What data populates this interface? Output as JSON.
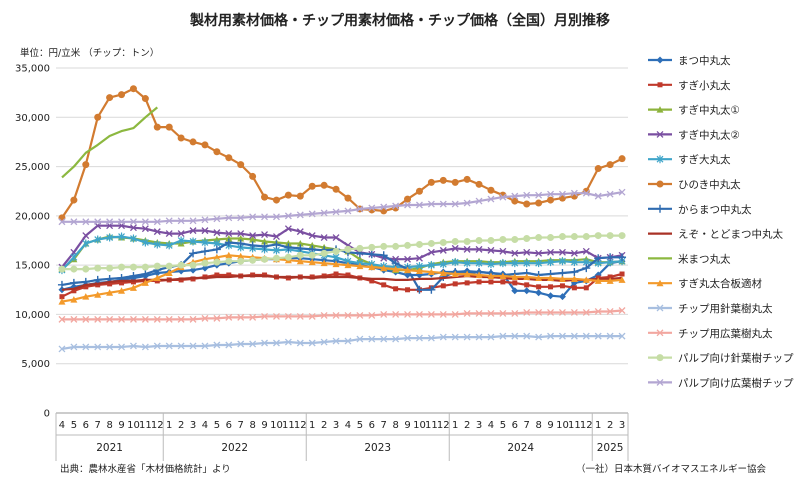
{
  "page": {
    "title": "製材用素材価格・チップ用素材価格・チップ価格（全国）月別推移",
    "unit_label": "単位：円/立米 （チップ：トン）",
    "source": "出典：農林水産省「木材価格統計」より",
    "credit": "（一社）日本木質バイオマスエネルギー協会"
  },
  "chart_data": {
    "type": "line",
    "title": "製材用素材価格・チップ用素材価格・チップ価格（全国）月別推移",
    "ylabel": "単位：円/立米 （チップ：トン）",
    "ylim": [
      0,
      35000
    ],
    "yticks": [
      0,
      5000,
      10000,
      15000,
      20000,
      25000,
      30000,
      35000
    ],
    "ytick_labels": [
      "0",
      "5,000",
      "10,000",
      "15,000",
      "20,000",
      "25,000",
      "30,000",
      "35,000"
    ],
    "grid": "horizontal",
    "legend": "right",
    "x_months": [
      "4",
      "5",
      "6",
      "7",
      "8",
      "9",
      "10",
      "11",
      "12",
      "1",
      "2",
      "3",
      "4",
      "5",
      "6",
      "7",
      "8",
      "9",
      "10",
      "11",
      "12",
      "1",
      "2",
      "3",
      "4",
      "5",
      "6",
      "7",
      "8",
      "9",
      "10",
      "11",
      "12",
      "1",
      "2",
      "3",
      "4",
      "5",
      "6",
      "7",
      "8",
      "9",
      "10",
      "11",
      "12",
      "1",
      "2",
      "3"
    ],
    "years": [
      {
        "label": "2021",
        "start": 0,
        "end": 8
      },
      {
        "label": "2022",
        "start": 9,
        "end": 20
      },
      {
        "label": "2023",
        "start": 21,
        "end": 32
      },
      {
        "label": "2024",
        "start": 33,
        "end": 44
      },
      {
        "label": "2025",
        "start": 45,
        "end": 47
      }
    ],
    "series": [
      {
        "name": "まつ中丸太",
        "color": "#2E6FB8",
        "marker": "diamond",
        "values": [
          12500,
          12800,
          13000,
          13200,
          13300,
          13500,
          13700,
          13900,
          14200,
          14300,
          14400,
          14500,
          14700,
          15000,
          15200,
          15400,
          15500,
          15600,
          15600,
          15700,
          15700,
          15600,
          15500,
          15400,
          15200,
          15000,
          14800,
          14500,
          14300,
          14000,
          14000,
          14100,
          14300,
          14300,
          14400,
          14300,
          14200,
          14100,
          12400,
          12400,
          12200,
          11900,
          11800,
          13200,
          13400,
          14000,
          15200,
          15400
        ]
      },
      {
        "name": "すぎ小丸太",
        "color": "#C0392B",
        "marker": "square",
        "values": [
          11800,
          12400,
          12800,
          13000,
          13100,
          13200,
          13300,
          13400,
          13400,
          13500,
          13500,
          13600,
          13800,
          14000,
          14000,
          13900,
          14000,
          14000,
          13800,
          13700,
          13800,
          13800,
          13900,
          14100,
          14000,
          13700,
          13400,
          13000,
          12600,
          12500,
          12500,
          12700,
          12900,
          13100,
          13200,
          13300,
          13300,
          13300,
          13200,
          13000,
          12800,
          12800,
          12900,
          12700,
          12700,
          13700,
          13800,
          14100
        ]
      },
      {
        "name": "すぎ中丸太①",
        "color": "#8DB33D",
        "marker": "triangle",
        "values": [
          14600,
          15600,
          17200,
          17600,
          17900,
          17800,
          17700,
          17500,
          17300,
          17200,
          17200,
          17400,
          17500,
          17600,
          17700,
          17700,
          17600,
          17400,
          17300,
          17200,
          17200,
          17000,
          16800,
          16600,
          16400,
          15600,
          15100,
          14700,
          14500,
          14500,
          14700,
          15100,
          15300,
          15400,
          15400,
          15400,
          15300,
          15300,
          15400,
          15400,
          15400,
          15500,
          15500,
          15500,
          15600,
          15300,
          15300,
          15400
        ]
      },
      {
        "name": "すぎ中丸太②",
        "color": "#7A4FA1",
        "marker": "x",
        "values": [
          14800,
          16300,
          18000,
          19000,
          19000,
          19000,
          18800,
          18700,
          18400,
          18200,
          18200,
          18500,
          18500,
          18300,
          18200,
          18200,
          18000,
          18100,
          17900,
          18700,
          18400,
          18000,
          17800,
          17800,
          17000,
          16300,
          16100,
          15700,
          15600,
          15600,
          15700,
          16300,
          16500,
          16700,
          16600,
          16600,
          16500,
          16400,
          16200,
          16300,
          16200,
          16300,
          16300,
          16200,
          16400,
          15700,
          15800,
          16000
        ]
      },
      {
        "name": "すぎ大丸太",
        "color": "#3FA5C9",
        "marker": "star",
        "values": [
          14500,
          15800,
          17200,
          17600,
          17800,
          17900,
          17700,
          17300,
          17100,
          17000,
          17500,
          17400,
          17300,
          17200,
          17000,
          16800,
          16700,
          16600,
          16500,
          16600,
          16400,
          16200,
          16000,
          15800,
          15400,
          15200,
          15100,
          14900,
          14800,
          14800,
          14900,
          15000,
          15100,
          15300,
          15200,
          15200,
          15100,
          15200,
          15200,
          15200,
          15200,
          15300,
          15400,
          15300,
          15300,
          15200,
          15300,
          15400
        ]
      },
      {
        "name": "ひのき中丸太",
        "color": "#D27B30",
        "marker": "circle",
        "values": [
          19800,
          21600,
          25200,
          30000,
          32000,
          32300,
          32900,
          31900,
          29000,
          29000,
          27900,
          27500,
          27200,
          26500,
          25900,
          25200,
          24000,
          21900,
          21600,
          22100,
          22000,
          23000,
          23100,
          22700,
          21800,
          20700,
          20600,
          20500,
          20800,
          21700,
          22500,
          23400,
          23600,
          23400,
          23700,
          23200,
          22600,
          22100,
          21500,
          21200,
          21300,
          21600,
          21800,
          22000,
          22500,
          24800,
          25200,
          25800
        ]
      },
      {
        "name": "からまつ中丸太",
        "color": "#2F6BB0",
        "marker": "plus",
        "values": [
          13000,
          13200,
          13300,
          13500,
          13600,
          13700,
          13900,
          14100,
          14500,
          14800,
          15000,
          16200,
          16400,
          16600,
          17300,
          17200,
          17000,
          16900,
          17100,
          16800,
          16700,
          16600,
          16500,
          16600,
          16300,
          16200,
          16100,
          16000,
          15200,
          14600,
          12500,
          12500,
          13800,
          14300,
          14200,
          14300,
          14200,
          14000,
          14100,
          14200,
          14000,
          14100,
          14200,
          14300,
          14700,
          15700,
          15800,
          15800
        ]
      },
      {
        "name": "えぞ・とどまつ中丸太",
        "color": "#A93226",
        "marker": "line",
        "values": [
          12500,
          12600,
          13000,
          13100,
          13300,
          13400,
          13400,
          13500,
          13500,
          13500,
          13600,
          13700,
          13700,
          13800,
          13800,
          13900,
          13900,
          13900,
          13800,
          13800,
          13800,
          13700,
          13800,
          13800,
          13800,
          13700,
          13600,
          13600,
          13500,
          13500,
          13600,
          13600,
          13700,
          13800,
          13900,
          13800,
          13800,
          13700,
          13600,
          13600,
          13500,
          13500,
          13400,
          13500,
          13500,
          13600,
          13600,
          13700
        ]
      },
      {
        "name": "米まつ丸太",
        "color": "#8CB840",
        "marker": "line",
        "values": [
          23900,
          25000,
          26400,
          27200,
          28100,
          28600,
          28900,
          30000,
          31000,
          null,
          null,
          null,
          null,
          null,
          null,
          null,
          null,
          null,
          null,
          null,
          null,
          null,
          null,
          null,
          null,
          null,
          null,
          null,
          null,
          null,
          null,
          null,
          null,
          null,
          null,
          null,
          null,
          null,
          null,
          null,
          null,
          null,
          null,
          null,
          null,
          null,
          null,
          null
        ]
      },
      {
        "name": "すぎ丸太合板適材",
        "color": "#F39A2B",
        "marker": "triangle",
        "values": [
          11300,
          11500,
          11800,
          12000,
          12200,
          12400,
          12700,
          13200,
          13700,
          14200,
          14800,
          15300,
          15600,
          15800,
          16000,
          15900,
          15800,
          15700,
          15600,
          15500,
          15400,
          15300,
          15200,
          15100,
          15000,
          14900,
          14800,
          14700,
          14600,
          14500,
          14400,
          14300,
          14200,
          14100,
          14100,
          14000,
          13900,
          13900,
          13800,
          13800,
          13700,
          13700,
          13600,
          13600,
          13500,
          13400,
          13400,
          13500
        ]
      },
      {
        "name": "チップ用針葉樹丸太",
        "color": "#A8BFE0",
        "marker": "x",
        "values": [
          6500,
          6700,
          6700,
          6700,
          6700,
          6700,
          6800,
          6700,
          6800,
          6800,
          6800,
          6800,
          6800,
          6900,
          6900,
          7000,
          7000,
          7100,
          7100,
          7200,
          7100,
          7100,
          7200,
          7300,
          7300,
          7500,
          7500,
          7500,
          7500,
          7600,
          7600,
          7600,
          7700,
          7700,
          7700,
          7700,
          7700,
          7800,
          7800,
          7800,
          7700,
          7800,
          7800,
          7800,
          7800,
          7800,
          7800,
          7800
        ]
      },
      {
        "name": "チップ用広葉樹丸太",
        "color": "#F2A7A0",
        "marker": "x",
        "values": [
          9500,
          9500,
          9500,
          9500,
          9500,
          9500,
          9500,
          9500,
          9500,
          9500,
          9500,
          9500,
          9600,
          9600,
          9700,
          9700,
          9700,
          9800,
          9800,
          9800,
          9800,
          9800,
          9900,
          9900,
          9900,
          9900,
          9900,
          10000,
          10000,
          10000,
          10000,
          10000,
          10000,
          10000,
          10100,
          10100,
          10100,
          10100,
          10100,
          10200,
          10200,
          10200,
          10200,
          10200,
          10200,
          10300,
          10300,
          10400
        ]
      },
      {
        "name": "パルプ向け針葉樹チップ",
        "color": "#C6DDA6",
        "marker": "circle",
        "values": [
          14600,
          14600,
          14600,
          14700,
          14700,
          14800,
          14800,
          14800,
          14900,
          14900,
          15000,
          15000,
          15200,
          15300,
          15400,
          15400,
          15500,
          15600,
          15700,
          15800,
          16000,
          16000,
          16200,
          16400,
          16600,
          16700,
          16800,
          16900,
          16900,
          17000,
          17100,
          17200,
          17300,
          17400,
          17400,
          17500,
          17500,
          17600,
          17600,
          17700,
          17800,
          17800,
          17900,
          17900,
          17900,
          18000,
          18000,
          18000
        ]
      },
      {
        "name": "パルプ向け広葉樹チップ",
        "color": "#B3A6D2",
        "marker": "x",
        "values": [
          19400,
          19400,
          19400,
          19400,
          19400,
          19400,
          19400,
          19400,
          19400,
          19500,
          19500,
          19500,
          19600,
          19700,
          19800,
          19800,
          19900,
          19900,
          19900,
          20000,
          20100,
          20200,
          20300,
          20400,
          20500,
          20700,
          20800,
          20900,
          21000,
          21100,
          21100,
          21200,
          21200,
          21200,
          21300,
          21500,
          21700,
          21900,
          22000,
          22100,
          22100,
          22200,
          22200,
          22300,
          22300,
          22000,
          22200,
          22400
        ]
      }
    ]
  }
}
